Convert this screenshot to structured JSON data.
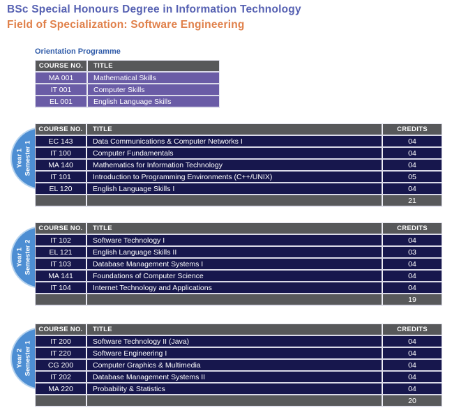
{
  "page": {
    "title": "BSc Special Honours Degree in Information Technology",
    "subtitle": "Field of Specialization: Software Engineering"
  },
  "colors": {
    "title_blue": "#5661b2",
    "subtitle_orange": "#e0804a",
    "section_label_blue": "#2e5aa8",
    "header_row_gray": "#57585a",
    "course_row_navy": "#17174d",
    "orientation_row_purple": "#6a5ca6",
    "total_row_gray": "#58595b",
    "badge_blue": "#4d8ed3",
    "badge_border_light_blue": "#b5d2ee"
  },
  "orientation": {
    "label": "Orientation Programme",
    "headers": {
      "course": "COURSE NO.",
      "title": "TITLE"
    },
    "rows": [
      {
        "course": "MA 001",
        "title": "Mathematical Skills"
      },
      {
        "course": "IT 001",
        "title": "Computer Skills"
      },
      {
        "course": "EL 001",
        "title": "English Language Skills"
      }
    ]
  },
  "semesters": [
    {
      "badge": {
        "line1": "Year 1",
        "line2": "Semester 1"
      },
      "headers": {
        "course": "COURSE NO.",
        "title": "TITLE",
        "credits": "CREDITS"
      },
      "rows": [
        {
          "course": "EC 143",
          "title": "Data Communications & Computer Networks I",
          "credits": "04"
        },
        {
          "course": "IT 100",
          "title": "Computer Fundamentals",
          "credits": "04"
        },
        {
          "course": "MA 140",
          "title": "Mathematics for Information Technology",
          "credits": "04"
        },
        {
          "course": "IT 101",
          "title": "Introduction to Programming Environments (C++/UNIX)",
          "credits": "05"
        },
        {
          "course": "EL 120",
          "title": "English Language Skills I",
          "credits": "04"
        }
      ],
      "total_credits": "21"
    },
    {
      "badge": {
        "line1": "Year 1",
        "line2": "Semester 2"
      },
      "headers": {
        "course": "COURSE NO.",
        "title": "TITLE",
        "credits": "CREDITS"
      },
      "rows": [
        {
          "course": "IT 102",
          "title": "Software Technology I",
          "credits": "04"
        },
        {
          "course": "EL 121",
          "title": "English Language Skills II",
          "credits": "03"
        },
        {
          "course": "IT 103",
          "title": "Database Management Systems I",
          "credits": "04"
        },
        {
          "course": "MA 141",
          "title": "Foundations of Computer Science",
          "credits": "04"
        },
        {
          "course": "IT 104",
          "title": "Internet Technology and Applications",
          "credits": "04"
        }
      ],
      "total_credits": "19"
    },
    {
      "badge": {
        "line1": "Year 2",
        "line2": "Semester 1"
      },
      "headers": {
        "course": "COURSE NO.",
        "title": "TITLE",
        "credits": "CREDITS"
      },
      "rows": [
        {
          "course": "IT 200",
          "title": "Software Technology II (Java)",
          "credits": "04"
        },
        {
          "course": "IT 220",
          "title": "Software Engineering I",
          "credits": "04"
        },
        {
          "course": "CG 200",
          "title": "Computer Graphics & Multimedia",
          "credits": "04"
        },
        {
          "course": "IT 202",
          "title": "Database Management Systems II",
          "credits": "04"
        },
        {
          "course": "MA 220",
          "title": "Probability & Statistics",
          "credits": "04"
        }
      ],
      "total_credits": "20"
    }
  ]
}
